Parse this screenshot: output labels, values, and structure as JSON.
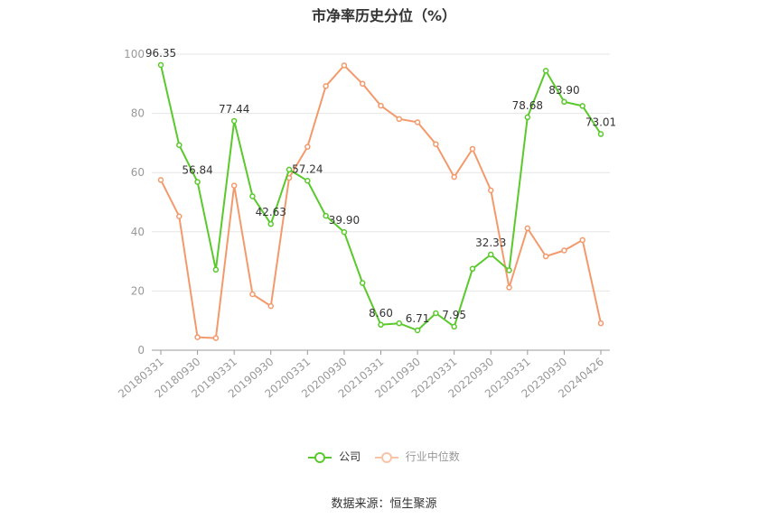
{
  "chart_data": {
    "type": "line",
    "title": "市净率历史分位（%）",
    "ylim": [
      0,
      100
    ],
    "yticks": [
      0,
      20,
      40,
      60,
      80,
      100
    ],
    "grid": true,
    "legend_position": "bottom",
    "x_tick_labels": [
      "20180331",
      "20180930",
      "20190331",
      "20190930",
      "20200331",
      "20200930",
      "20210331",
      "20210930",
      "20220331",
      "20220930",
      "20230331",
      "20230930",
      "20240426"
    ],
    "x": [
      "20180331",
      "20180630",
      "20180930",
      "20181231",
      "20190331",
      "20190630",
      "20190930",
      "20191231",
      "20200331",
      "20200630",
      "20200930",
      "20201231",
      "20210331",
      "20210630",
      "20210930",
      "20211231",
      "20220331",
      "20220630",
      "20220930",
      "20221231",
      "20230331",
      "20230630",
      "20230930",
      "20231231",
      "20240426"
    ],
    "series": [
      {
        "name": "公司",
        "color": "#5ac92c",
        "values": [
          96.35,
          69.3,
          56.84,
          27.2,
          77.44,
          52.0,
          42.63,
          61.0,
          57.24,
          45.4,
          39.9,
          22.7,
          8.6,
          9.1,
          6.71,
          12.5,
          7.95,
          27.5,
          32.33,
          27.0,
          78.68,
          94.4,
          83.9,
          82.5,
          73.01
        ],
        "labels": {
          "0": "96.35",
          "2": "56.84",
          "4": "77.44",
          "6": "42.63",
          "8": "57.24",
          "10": "39.90",
          "12": "8.60",
          "14": "6.71",
          "16": "7.95",
          "18": "32.33",
          "20": "78.68",
          "22": "83.90",
          "24": "73.01"
        }
      },
      {
        "name": "行业中位数",
        "color": "#f39a6c",
        "values": [
          57.5,
          45.2,
          4.4,
          4.1,
          55.6,
          18.9,
          14.9,
          58.2,
          68.7,
          89.2,
          96.2,
          90.0,
          82.6,
          78.1,
          77.0,
          69.6,
          58.5,
          68.0,
          54.0,
          21.2,
          41.2,
          31.7,
          33.7,
          37.2,
          9.1
        ]
      }
    ]
  },
  "footer": {
    "source": "数据来源：恒生聚源"
  }
}
